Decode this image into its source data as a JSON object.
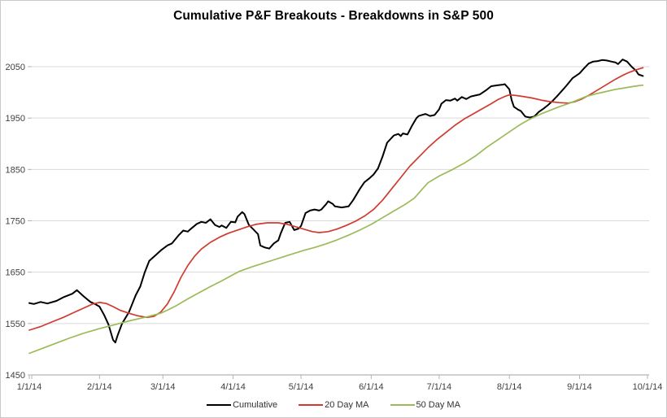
{
  "chart_data": {
    "type": "line",
    "title": "Cumulative P&F Breakouts - Breakdowns in S&P 500",
    "xlabel": "",
    "ylabel": "",
    "grid": "horizontal",
    "legend_position": "bottom",
    "ylim": [
      1450,
      2090
    ],
    "y_ticks": [
      1450,
      1550,
      1650,
      1750,
      1850,
      1950,
      2050
    ],
    "x_ticks": [
      {
        "label": "1/1/14",
        "day": 0
      },
      {
        "label": "2/1/14",
        "day": 31
      },
      {
        "label": "3/1/14",
        "day": 59
      },
      {
        "label": "4/1/14",
        "day": 90
      },
      {
        "label": "5/1/14",
        "day": 120
      },
      {
        "label": "6/1/14",
        "day": 151
      },
      {
        "label": "7/1/14",
        "day": 181
      },
      {
        "label": "8/1/14",
        "day": 212
      },
      {
        "label": "9/1/14",
        "day": 243
      },
      {
        "label": "10/1/14",
        "day": 273
      }
    ],
    "colors": {
      "grid": "#d9d9d9",
      "axis": "#b3b3b3",
      "label": "#3f3f3f"
    },
    "series": [
      {
        "name": "Cumulative",
        "color": "#000000",
        "width": 2,
        "points": [
          [
            0,
            1590
          ],
          [
            2,
            1588
          ],
          [
            5,
            1592
          ],
          [
            8,
            1589
          ],
          [
            12,
            1594
          ],
          [
            15,
            1601
          ],
          [
            19,
            1608
          ],
          [
            21,
            1615
          ],
          [
            24,
            1603
          ],
          [
            27,
            1592
          ],
          [
            29,
            1588
          ],
          [
            31,
            1583
          ],
          [
            33,
            1567
          ],
          [
            35,
            1548
          ],
          [
            37,
            1518
          ],
          [
            38,
            1513
          ],
          [
            39,
            1527
          ],
          [
            41,
            1550
          ],
          [
            44,
            1572
          ],
          [
            47,
            1605
          ],
          [
            49,
            1622
          ],
          [
            51,
            1650
          ],
          [
            53,
            1672
          ],
          [
            56,
            1684
          ],
          [
            58,
            1692
          ],
          [
            61,
            1702
          ],
          [
            63,
            1706
          ],
          [
            66,
            1722
          ],
          [
            68,
            1731
          ],
          [
            70,
            1729
          ],
          [
            71,
            1733
          ],
          [
            74,
            1744
          ],
          [
            76,
            1748
          ],
          [
            78,
            1746
          ],
          [
            80,
            1753
          ],
          [
            82,
            1742
          ],
          [
            84,
            1738
          ],
          [
            85,
            1741
          ],
          [
            87,
            1736
          ],
          [
            89,
            1748
          ],
          [
            91,
            1747
          ],
          [
            92,
            1758
          ],
          [
            94,
            1767
          ],
          [
            95,
            1763
          ],
          [
            97,
            1742
          ],
          [
            99,
            1733
          ],
          [
            101,
            1724
          ],
          [
            102,
            1702
          ],
          [
            104,
            1698
          ],
          [
            106,
            1696
          ],
          [
            108,
            1706
          ],
          [
            110,
            1712
          ],
          [
            111,
            1725
          ],
          [
            113,
            1746
          ],
          [
            115,
            1748
          ],
          [
            117,
            1732
          ],
          [
            119,
            1735
          ],
          [
            120,
            1740
          ],
          [
            122,
            1765
          ],
          [
            124,
            1770
          ],
          [
            126,
            1772
          ],
          [
            128,
            1770
          ],
          [
            129,
            1772
          ],
          [
            131,
            1782
          ],
          [
            132,
            1788
          ],
          [
            134,
            1783
          ],
          [
            135,
            1778
          ],
          [
            138,
            1776
          ],
          [
            141,
            1778
          ],
          [
            143,
            1790
          ],
          [
            146,
            1812
          ],
          [
            148,
            1825
          ],
          [
            150,
            1832
          ],
          [
            152,
            1840
          ],
          [
            154,
            1852
          ],
          [
            156,
            1875
          ],
          [
            158,
            1902
          ],
          [
            161,
            1916
          ],
          [
            163,
            1919
          ],
          [
            164,
            1915
          ],
          [
            165,
            1920
          ],
          [
            167,
            1918
          ],
          [
            169,
            1935
          ],
          [
            171,
            1950
          ],
          [
            172,
            1954
          ],
          [
            175,
            1958
          ],
          [
            177,
            1954
          ],
          [
            179,
            1956
          ],
          [
            181,
            1967
          ],
          [
            182,
            1978
          ],
          [
            184,
            1985
          ],
          [
            186,
            1984
          ],
          [
            188,
            1988
          ],
          [
            189,
            1984
          ],
          [
            191,
            1991
          ],
          [
            193,
            1987
          ],
          [
            195,
            1992
          ],
          [
            197,
            1994
          ],
          [
            199,
            1996
          ],
          [
            202,
            2005
          ],
          [
            204,
            2012
          ],
          [
            207,
            2014
          ],
          [
            209,
            2015
          ],
          [
            210,
            2016
          ],
          [
            212,
            2006
          ],
          [
            213,
            1985
          ],
          [
            214,
            1972
          ],
          [
            216,
            1966
          ],
          [
            217,
            1964
          ],
          [
            219,
            1953
          ],
          [
            221,
            1951
          ],
          [
            223,
            1953
          ],
          [
            225,
            1962
          ],
          [
            227,
            1968
          ],
          [
            229,
            1975
          ],
          [
            231,
            1983
          ],
          [
            233,
            1992
          ],
          [
            235,
            2002
          ],
          [
            237,
            2012
          ],
          [
            240,
            2028
          ],
          [
            243,
            2037
          ],
          [
            245,
            2047
          ],
          [
            247,
            2056
          ],
          [
            249,
            2060
          ],
          [
            251,
            2061
          ],
          [
            253,
            2063
          ],
          [
            255,
            2062
          ],
          [
            257,
            2060
          ],
          [
            259,
            2058
          ],
          [
            260,
            2055
          ],
          [
            262,
            2064
          ],
          [
            264,
            2060
          ],
          [
            266,
            2050
          ],
          [
            268,
            2042
          ],
          [
            269,
            2035
          ],
          [
            271,
            2032
          ]
        ]
      },
      {
        "name": "20 Day MA",
        "color": "#d03b30",
        "width": 1.7,
        "points": [
          [
            0,
            1537
          ],
          [
            5,
            1544
          ],
          [
            10,
            1553
          ],
          [
            15,
            1562
          ],
          [
            20,
            1572
          ],
          [
            24,
            1580
          ],
          [
            28,
            1588
          ],
          [
            31,
            1591
          ],
          [
            34,
            1589
          ],
          [
            37,
            1583
          ],
          [
            40,
            1576
          ],
          [
            44,
            1570
          ],
          [
            48,
            1565
          ],
          [
            52,
            1562
          ],
          [
            55,
            1564
          ],
          [
            58,
            1572
          ],
          [
            61,
            1588
          ],
          [
            64,
            1612
          ],
          [
            67,
            1640
          ],
          [
            70,
            1663
          ],
          [
            73,
            1681
          ],
          [
            76,
            1695
          ],
          [
            80,
            1708
          ],
          [
            84,
            1718
          ],
          [
            88,
            1726
          ],
          [
            92,
            1732
          ],
          [
            96,
            1738
          ],
          [
            100,
            1743
          ],
          [
            105,
            1746
          ],
          [
            110,
            1746
          ],
          [
            114,
            1743
          ],
          [
            118,
            1738
          ],
          [
            121,
            1734
          ],
          [
            125,
            1729
          ],
          [
            128,
            1727
          ],
          [
            132,
            1729
          ],
          [
            136,
            1734
          ],
          [
            140,
            1741
          ],
          [
            144,
            1749
          ],
          [
            148,
            1759
          ],
          [
            152,
            1772
          ],
          [
            156,
            1790
          ],
          [
            160,
            1812
          ],
          [
            164,
            1834
          ],
          [
            168,
            1856
          ],
          [
            172,
            1874
          ],
          [
            176,
            1892
          ],
          [
            180,
            1908
          ],
          [
            184,
            1922
          ],
          [
            188,
            1936
          ],
          [
            192,
            1948
          ],
          [
            196,
            1958
          ],
          [
            200,
            1968
          ],
          [
            204,
            1978
          ],
          [
            207,
            1986
          ],
          [
            210,
            1992
          ],
          [
            212,
            1995
          ],
          [
            215,
            1994
          ],
          [
            218,
            1992
          ],
          [
            222,
            1989
          ],
          [
            226,
            1985
          ],
          [
            230,
            1982
          ],
          [
            234,
            1980
          ],
          [
            238,
            1979
          ],
          [
            241,
            1982
          ],
          [
            244,
            1987
          ],
          [
            247,
            1994
          ],
          [
            250,
            2002
          ],
          [
            253,
            2010
          ],
          [
            256,
            2018
          ],
          [
            259,
            2026
          ],
          [
            262,
            2033
          ],
          [
            265,
            2039
          ],
          [
            268,
            2044
          ],
          [
            271,
            2048
          ]
        ]
      },
      {
        "name": "50 Day MA",
        "color": "#9bbb59",
        "width": 1.7,
        "points": [
          [
            0,
            1492
          ],
          [
            6,
            1502
          ],
          [
            12,
            1512
          ],
          [
            18,
            1522
          ],
          [
            24,
            1531
          ],
          [
            31,
            1540
          ],
          [
            38,
            1548
          ],
          [
            45,
            1556
          ],
          [
            52,
            1563
          ],
          [
            58,
            1570
          ],
          [
            61,
            1576
          ],
          [
            65,
            1585
          ],
          [
            70,
            1598
          ],
          [
            75,
            1610
          ],
          [
            80,
            1622
          ],
          [
            85,
            1633
          ],
          [
            90,
            1645
          ],
          [
            93,
            1652
          ],
          [
            98,
            1660
          ],
          [
            103,
            1667
          ],
          [
            108,
            1674
          ],
          [
            113,
            1681
          ],
          [
            118,
            1688
          ],
          [
            121,
            1692
          ],
          [
            126,
            1698
          ],
          [
            131,
            1705
          ],
          [
            136,
            1713
          ],
          [
            141,
            1722
          ],
          [
            146,
            1732
          ],
          [
            151,
            1743
          ],
          [
            156,
            1756
          ],
          [
            161,
            1769
          ],
          [
            166,
            1782
          ],
          [
            170,
            1794
          ],
          [
            176,
            1824
          ],
          [
            181,
            1837
          ],
          [
            187,
            1850
          ],
          [
            192,
            1862
          ],
          [
            197,
            1876
          ],
          [
            202,
            1893
          ],
          [
            207,
            1908
          ],
          [
            212,
            1923
          ],
          [
            216,
            1935
          ],
          [
            219,
            1943
          ],
          [
            222,
            1950
          ],
          [
            226,
            1958
          ],
          [
            230,
            1965
          ],
          [
            234,
            1972
          ],
          [
            238,
            1978
          ],
          [
            242,
            1985
          ],
          [
            246,
            1992
          ],
          [
            250,
            1997
          ],
          [
            254,
            2001
          ],
          [
            258,
            2005
          ],
          [
            262,
            2008
          ],
          [
            266,
            2011
          ],
          [
            269,
            2013
          ],
          [
            271,
            2014
          ]
        ]
      }
    ]
  }
}
